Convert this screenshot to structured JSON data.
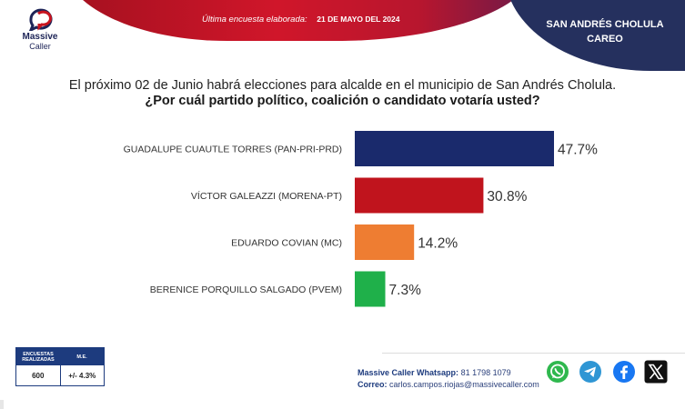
{
  "brand": {
    "name": "Massive",
    "sub": "Caller"
  },
  "header": {
    "survey_label": "Última encuesta elaborada:",
    "survey_date": "21 DE MAYO DEL 2024",
    "location_line1": "SAN ANDRÉS CHOLULA",
    "location_line2": "CAREO"
  },
  "question": {
    "line1": "El próximo 02 de Junio habrá elecciones para alcalde en el municipio de San Andrés Cholula.",
    "line2": "¿Por cuál partido político, coalición o candidato votaría usted?"
  },
  "chart_data": {
    "type": "bar",
    "orientation": "horizontal",
    "categories": [
      "GUADALUPE CUAUTLE TORRES (PAN-PRI-PRD)",
      "VÍCTOR GALEAZZI (MORENA-PT)",
      "EDUARDO COVIAN (MC)",
      "BERENICE PORQUILLO SALGADO (PVEM)"
    ],
    "values": [
      47.7,
      30.8,
      14.2,
      7.3
    ],
    "value_labels": [
      "47.7%",
      "30.8%",
      "14.2%",
      "7.3%"
    ],
    "colors": [
      "#1a2a6c",
      "#c0141d",
      "#ee7d32",
      "#1fb04a"
    ],
    "xlim": [
      0,
      47.7
    ],
    "grid": false,
    "legend": "none"
  },
  "stats": {
    "col1_header": "ENCUESTAS REALIZADAS",
    "col2_header": "M.E.",
    "col1_value": "600",
    "col2_value": "+/- 4.3%"
  },
  "contact": {
    "whatsapp_label": "Massive Caller Whatsapp:",
    "whatsapp_value": "81 1798 1079",
    "email_label": "Correo:",
    "email_value": "carlos.campos.riojas@massivecaller.com"
  },
  "social_icons": [
    "whatsapp-icon",
    "telegram-icon",
    "facebook-icon",
    "x-icon"
  ],
  "colors": {
    "navy": "#25305e",
    "red": "#c8141f"
  }
}
